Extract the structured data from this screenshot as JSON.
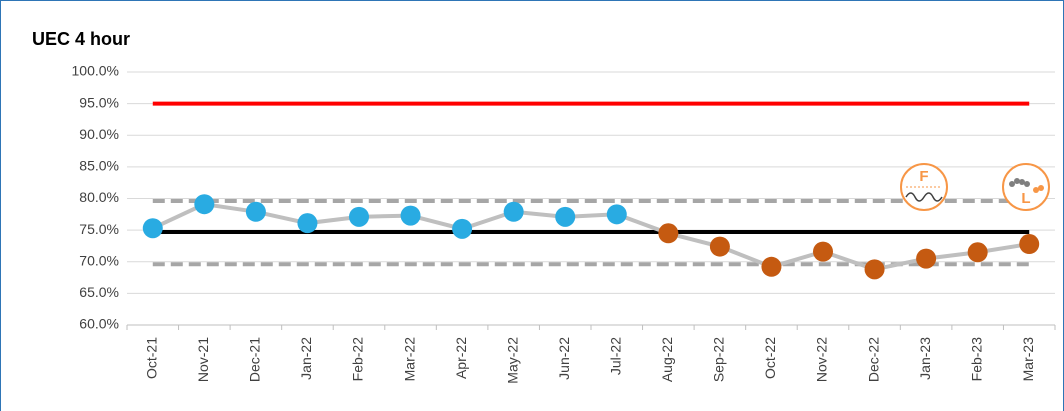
{
  "chart_data": {
    "type": "line",
    "title": "UEC 4 hour",
    "categories": [
      "Oct-21",
      "Nov-21",
      "Dec-21",
      "Jan-22",
      "Feb-22",
      "Mar-22",
      "Apr-22",
      "May-22",
      "Jun-22",
      "Jul-22",
      "Aug-22",
      "Sep-22",
      "Oct-22",
      "Nov-22",
      "Dec-22",
      "Jan-23",
      "Feb-23",
      "Mar-23"
    ],
    "values": [
      75.3,
      79.1,
      77.9,
      76.1,
      77.1,
      77.3,
      75.2,
      77.9,
      77.1,
      77.5,
      74.5,
      72.4,
      69.2,
      71.6,
      68.8,
      70.5,
      71.5,
      72.8
    ],
    "color": "#bfbfbf",
    "point_colors": [
      "#29abe2",
      "#29abe2",
      "#29abe2",
      "#29abe2",
      "#29abe2",
      "#29abe2",
      "#29abe2",
      "#29abe2",
      "#29abe2",
      "#29abe2",
      "#c55a11",
      "#c55a11",
      "#c55a11",
      "#c55a11",
      "#c55a11",
      "#c55a11",
      "#c55a11",
      "#c55a11"
    ],
    "reference_lines": [
      {
        "value": 95,
        "color": "#ff0000",
        "dashed": false
      },
      {
        "value": 74.7,
        "color": "#000000",
        "dashed": false
      },
      {
        "value": 79.6,
        "color": "#a6a6a6",
        "dashed": true
      },
      {
        "value": 69.6,
        "color": "#a6a6a6",
        "dashed": true
      }
    ],
    "icons": [
      "F",
      "L"
    ],
    "ylim": [
      60,
      100
    ],
    "yticks": [
      {
        "value": 60,
        "label": "60.0%"
      },
      {
        "value": 65,
        "label": "65.0%"
      },
      {
        "value": 70,
        "label": "70.0%"
      },
      {
        "value": 75,
        "label": "75.0%"
      },
      {
        "value": 80,
        "label": "80.0%"
      },
      {
        "value": 85,
        "label": "85.0%"
      },
      {
        "value": 90,
        "label": "90.0%"
      },
      {
        "value": 95,
        "label": "95.0%"
      },
      {
        "value": 100,
        "label": "100.0%"
      }
    ],
    "grid": true
  }
}
